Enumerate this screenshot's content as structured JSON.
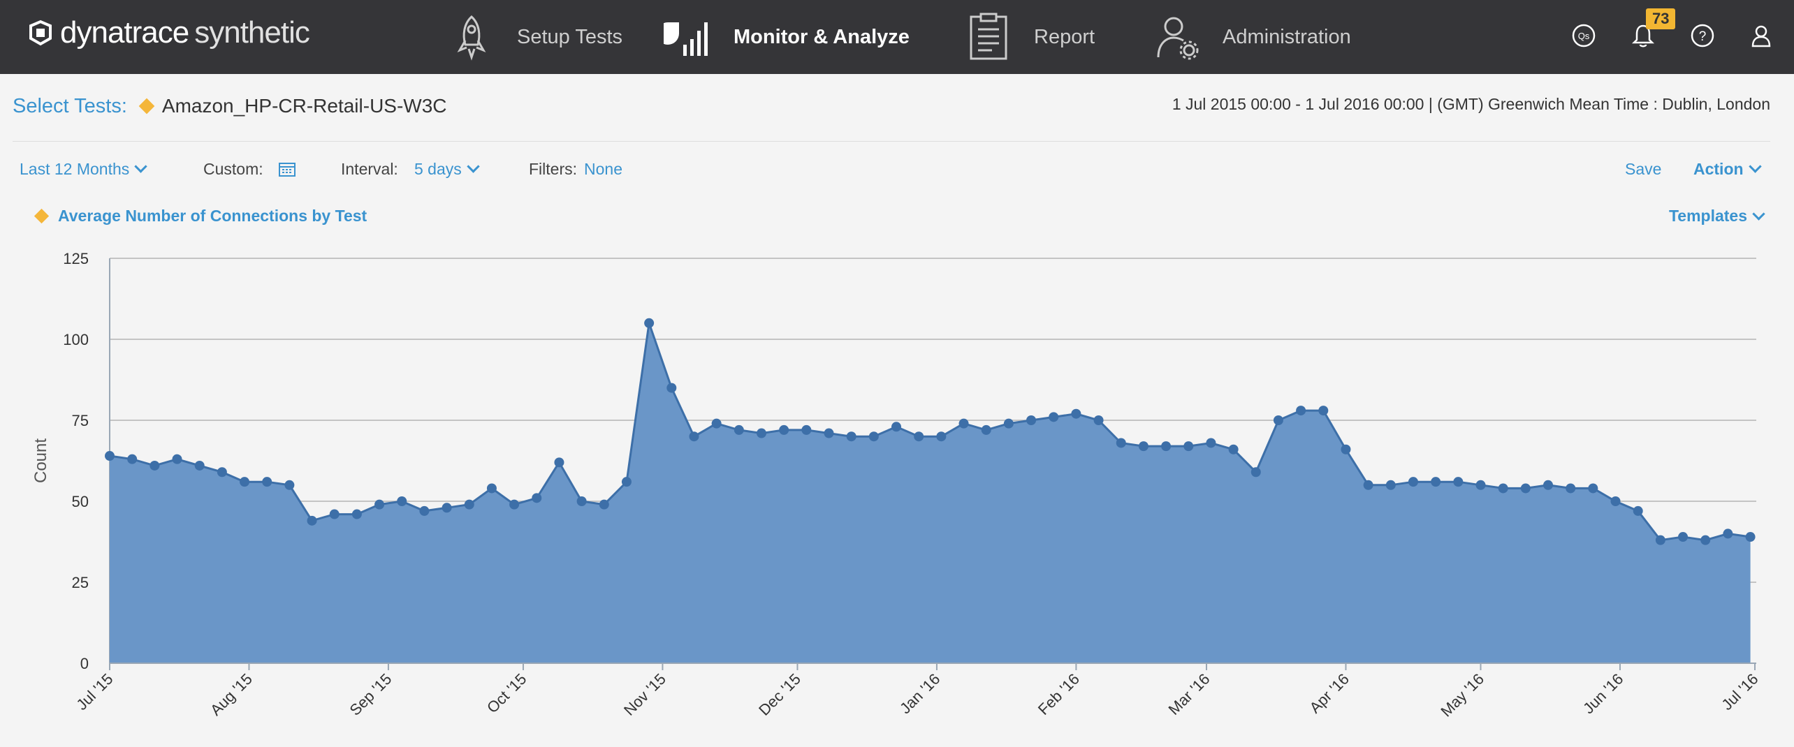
{
  "app": {
    "brand": "dynatrace",
    "product": "synthetic"
  },
  "nav": {
    "setup": "Setup Tests",
    "monitor": "Monitor & Analyze",
    "report": "Report",
    "admin": "Administration"
  },
  "utils": {
    "qs_label": "Qs",
    "notification_count": "73",
    "help_label": "?"
  },
  "header": {
    "select_label": "Select Tests:",
    "test_name": "Amazon_HP-CR-Retail-US-W3C",
    "date_range": "1 Jul 2015 00:00 - 1 Jul 2016 00:00  | (GMT) Greenwich Mean Time : Dublin, London"
  },
  "filters": {
    "period": "Last 12 Months",
    "custom_label": "Custom:",
    "interval_label": "Interval:",
    "interval_value": "5 days",
    "filters_label": "Filters:",
    "filters_value": "None",
    "save": "Save",
    "action": "Action"
  },
  "chart_header": {
    "title": "Average Number of Connections by Test",
    "templates": "Templates"
  },
  "colors": {
    "accent": "#3a93cf",
    "area_fill": "#6a96c8",
    "line": "#3d6fa8",
    "marker": "#f4b63a",
    "nav_bg": "#353538"
  },
  "chart_data": {
    "type": "area",
    "title": "Average Number of Connections by Test",
    "xlabel": "",
    "ylabel": "Count",
    "ylim": [
      0,
      125
    ],
    "yticks": [
      0,
      25,
      50,
      75,
      100,
      125
    ],
    "grid": true,
    "xticks": [
      "Jul '15",
      "Aug '15",
      "Sep '15",
      "Oct '15",
      "Nov '15",
      "Dec '15",
      "Jan '16",
      "Feb '16",
      "Mar '16",
      "Apr '16",
      "May '16",
      "Jun '16",
      "Jul '16"
    ],
    "x_start": "2015-07-01",
    "x_end": "2016-07-01",
    "series": [
      {
        "x": [
          "2015-07-01",
          "2015-07-06",
          "2015-07-11",
          "2015-07-16",
          "2015-07-21",
          "2015-07-26",
          "2015-07-31",
          "2015-08-05",
          "2015-08-10",
          "2015-08-15",
          "2015-08-20",
          "2015-08-25",
          "2015-08-30",
          "2015-09-04",
          "2015-09-09",
          "2015-09-14",
          "2015-09-19",
          "2015-09-24",
          "2015-09-29",
          "2015-10-04",
          "2015-10-09",
          "2015-10-14",
          "2015-10-19",
          "2015-10-24",
          "2015-10-29",
          "2015-11-03",
          "2015-11-08",
          "2015-11-13",
          "2015-11-18",
          "2015-11-23",
          "2015-11-28",
          "2015-12-03",
          "2015-12-08",
          "2015-12-13",
          "2015-12-18",
          "2015-12-23",
          "2015-12-28",
          "2016-01-02",
          "2016-01-07",
          "2016-01-12",
          "2016-01-17",
          "2016-01-22",
          "2016-01-27",
          "2016-02-01",
          "2016-02-06",
          "2016-02-11",
          "2016-02-16",
          "2016-02-21",
          "2016-02-26",
          "2016-03-02",
          "2016-03-07",
          "2016-03-12",
          "2016-03-17",
          "2016-03-22",
          "2016-03-27",
          "2016-04-01",
          "2016-04-06",
          "2016-04-11",
          "2016-04-16",
          "2016-04-21",
          "2016-04-26",
          "2016-05-01",
          "2016-05-06",
          "2016-05-11",
          "2016-05-16",
          "2016-05-21",
          "2016-05-26",
          "2016-05-31",
          "2016-06-05",
          "2016-06-10",
          "2016-06-15",
          "2016-06-20",
          "2016-06-25",
          "2016-06-30"
        ],
        "values": [
          64,
          63,
          61,
          63,
          61,
          59,
          56,
          56,
          55,
          44,
          46,
          46,
          49,
          50,
          47,
          48,
          49,
          54,
          49,
          51,
          62,
          50,
          49,
          56,
          105,
          85,
          70,
          74,
          72,
          71,
          72,
          72,
          71,
          70,
          70,
          73,
          70,
          70,
          74,
          72,
          74,
          75,
          76,
          77,
          75,
          68,
          67,
          67,
          67,
          68,
          66,
          59,
          75,
          78,
          78,
          66,
          55,
          55,
          56,
          56,
          56,
          55,
          54,
          54,
          55,
          54,
          54,
          50,
          47,
          38,
          39,
          38,
          40,
          39
        ]
      }
    ]
  }
}
